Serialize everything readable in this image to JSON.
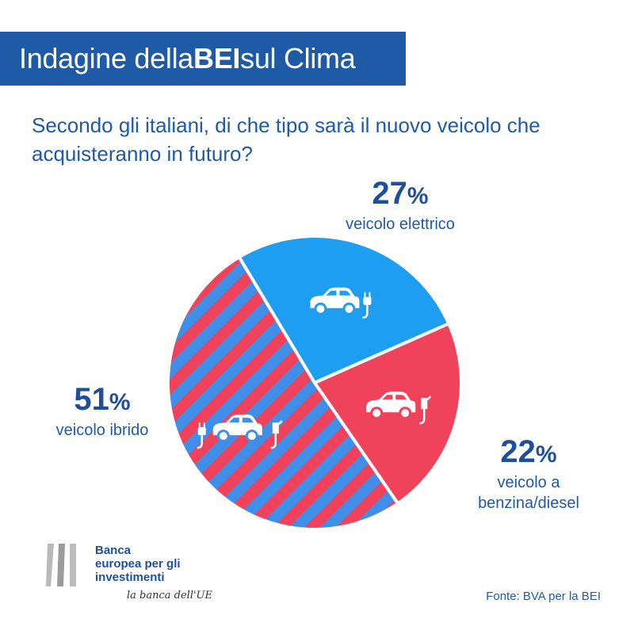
{
  "header": {
    "title_prefix": "Indagine della ",
    "title_bold": "BEI",
    "title_suffix": " sul Clima"
  },
  "question": "Secondo gli italiani, di che tipo sarà il nuovo veicolo che acquisteranno in futuro?",
  "colors": {
    "electric": "#1e9ef0",
    "petrol": "#f0425a",
    "hybrid_stripe_blue": "#3f8ee8",
    "hybrid_stripe_red": "#f0425a",
    "title_blue": "#1f5aa6"
  },
  "chart_data": {
    "type": "pie",
    "title": "Secondo gli italiani, di che tipo sarà il nuovo veicolo che acquisteranno in futuro?",
    "slices": [
      {
        "key": "electric",
        "label": "veicolo elettrico",
        "value": 27,
        "value_label": "27",
        "icon": "electric-car-icon"
      },
      {
        "key": "petrol",
        "label": "veicolo a benzina/diesel",
        "value": 22,
        "value_label": "22",
        "icon": "petrol-car-icon"
      },
      {
        "key": "hybrid",
        "label": "veicolo ibrido",
        "value": 51,
        "value_label": "51",
        "icon": "hybrid-car-icon"
      }
    ],
    "unit": "%"
  },
  "labels": {
    "electric": {
      "pct": "27",
      "line1": "veicolo elettrico"
    },
    "petrol": {
      "pct": "22",
      "line1": "veicolo a",
      "line2": "benzina/diesel"
    },
    "hybrid": {
      "pct": "51",
      "line1": "veicolo ibrido"
    },
    "percent_sign": "%"
  },
  "footer": {
    "bank_line1": "Banca",
    "bank_line2": "europea per gli",
    "bank_line3": "investimenti",
    "tagline": "la banca dell'UE",
    "source": "Fonte: BVA per la BEI"
  }
}
